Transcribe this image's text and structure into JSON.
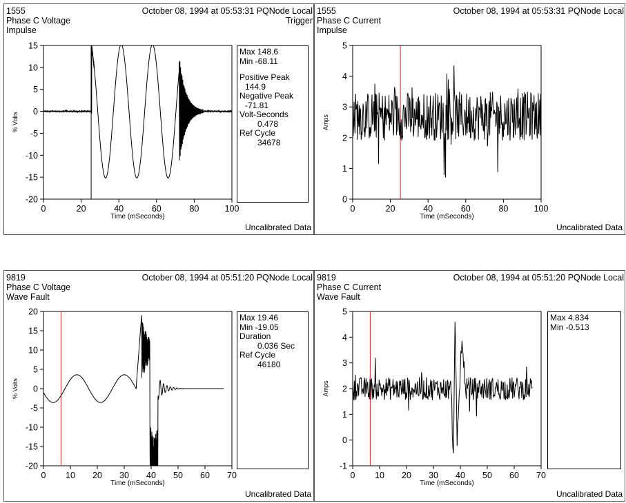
{
  "panels": {
    "tl": {
      "event_id": "1555",
      "channel": "Phase C Voltage",
      "event_type": "Impulse",
      "timestamp": "October 08, 1994 at 05:53:31 PQNode Local",
      "trigger_label": "Trigger",
      "footer": "Uncalibrated Data",
      "stats": {
        "max": "Max 148.6",
        "min": "Min  -68.11",
        "pos_peak_label": "Positive Peak",
        "pos_peak_value": "144.9",
        "neg_peak_label": "Negative Peak",
        "neg_peak_value": "-71.81",
        "vs_label": "Volt-Seconds",
        "vs_value": "0.478",
        "ref_label": "Ref Cycle",
        "ref_value": "34678"
      }
    },
    "tr": {
      "event_id": "1555",
      "channel": "Phase C Current",
      "event_type": "Impulse",
      "timestamp": "October 08, 1994 at 05:53:31 PQNode Local",
      "footer": "Uncalibrated Data"
    },
    "bl": {
      "event_id": "9819",
      "channel": "Phase C Voltage",
      "event_type": "Wave Fault",
      "timestamp": "October 08, 1994 at 05:51:20 PQNode Local",
      "footer": "Uncalibrated Data",
      "stats": {
        "max": "Max 19.46",
        "min": "Min  -19.05",
        "dur_label": "Duration",
        "dur_value": "0.036 Sec",
        "ref_label": "Ref Cycle",
        "ref_value": "46180"
      }
    },
    "br": {
      "event_id": "9819",
      "channel": "Phase C Current",
      "event_type": "Wave Fault",
      "timestamp": "October 08, 1994 at 05:51:20 PQNode Local",
      "footer": "Uncalibrated Data",
      "stats": {
        "max": "Max 4.834",
        "min": "Min  -0.513"
      }
    }
  },
  "colors": {
    "trace": "#000000",
    "trigger_marker": "#cc2222",
    "frame": "#555555"
  },
  "chart_data": [
    {
      "type": "line",
      "id": "tl",
      "xlabel": "Time (mSeconds)",
      "ylabel": "% Volts",
      "xlim": [
        0,
        100
      ],
      "ylim": [
        -20,
        15
      ],
      "xticks": [
        0,
        20,
        40,
        60,
        80,
        100
      ],
      "yticks": [
        -20,
        -15,
        -10,
        -5,
        0,
        5,
        10,
        15
      ],
      "trigger_x": 25.3,
      "trigger_color": "black",
      "series": [
        {
          "x": [
            0,
            25.3,
            25.3,
            26.0,
            33.0,
            41.3,
            49.6,
            57.9,
            66.2,
            71.5,
            72.0,
            73.0,
            80.0,
            85.0,
            100
          ],
          "y": [
            0,
            0,
            14.5,
            -12,
            -16,
            14.2,
            -15.2,
            14.6,
            -15.4,
            6,
            12.5,
            8,
            0,
            0,
            0
          ]
        }
      ]
    },
    {
      "type": "line",
      "id": "tr",
      "xlabel": "Time (mSeconds)",
      "ylabel": "Amps",
      "xlim": [
        0,
        100
      ],
      "ylim": [
        0,
        5
      ],
      "xticks": [
        0,
        20,
        40,
        60,
        80,
        100
      ],
      "yticks": [
        0,
        1,
        2,
        3,
        4,
        5
      ],
      "trigger_x": 25.3,
      "series": [
        {
          "x": [
            0,
            100
          ],
          "y": [
            2.7,
            2.7
          ],
          "noise_amplitude": 0.55,
          "max": 4.5,
          "min": 0.7
        }
      ]
    },
    {
      "type": "line",
      "id": "bl",
      "xlabel": "Time (mSeconds)",
      "ylabel": "% Volts",
      "xlim": [
        0,
        70
      ],
      "ylim": [
        -20,
        20
      ],
      "xticks": [
        0,
        10,
        20,
        30,
        40,
        50,
        60,
        70
      ],
      "yticks": [
        -20,
        -15,
        -10,
        -5,
        0,
        5,
        10,
        15,
        20
      ],
      "trigger_x": 6.5,
      "series": [
        {
          "x": [
            0,
            3.5,
            12.5,
            21.5,
            30.0,
            34.5,
            36.5,
            38.0,
            39.5,
            41.0,
            42.5,
            44.0,
            47.0,
            52.0,
            67.0
          ],
          "y": [
            0,
            -3.6,
            3.5,
            -3.5,
            3.4,
            0.5,
            19.5,
            10,
            -5,
            -17,
            -19,
            -3,
            -1,
            0,
            0
          ]
        }
      ]
    },
    {
      "type": "line",
      "id": "br",
      "xlabel": "Time (mSeconds)",
      "ylabel": "Amps",
      "xlim": [
        0,
        70
      ],
      "ylim": [
        -1,
        5
      ],
      "xticks": [
        0,
        10,
        20,
        30,
        40,
        50,
        60,
        70
      ],
      "yticks": [
        -1,
        0,
        1,
        2,
        3,
        4,
        5
      ],
      "trigger_x": 6.5,
      "series": [
        {
          "x": [
            0,
            35.0,
            37.5,
            38.0,
            38.8,
            40.5,
            42.0,
            67.0
          ],
          "y": [
            2.0,
            2.0,
            -0.5,
            4.8,
            0.0,
            3.9,
            2.0,
            2.0
          ],
          "noise_amplitude": 0.35
        }
      ]
    }
  ]
}
